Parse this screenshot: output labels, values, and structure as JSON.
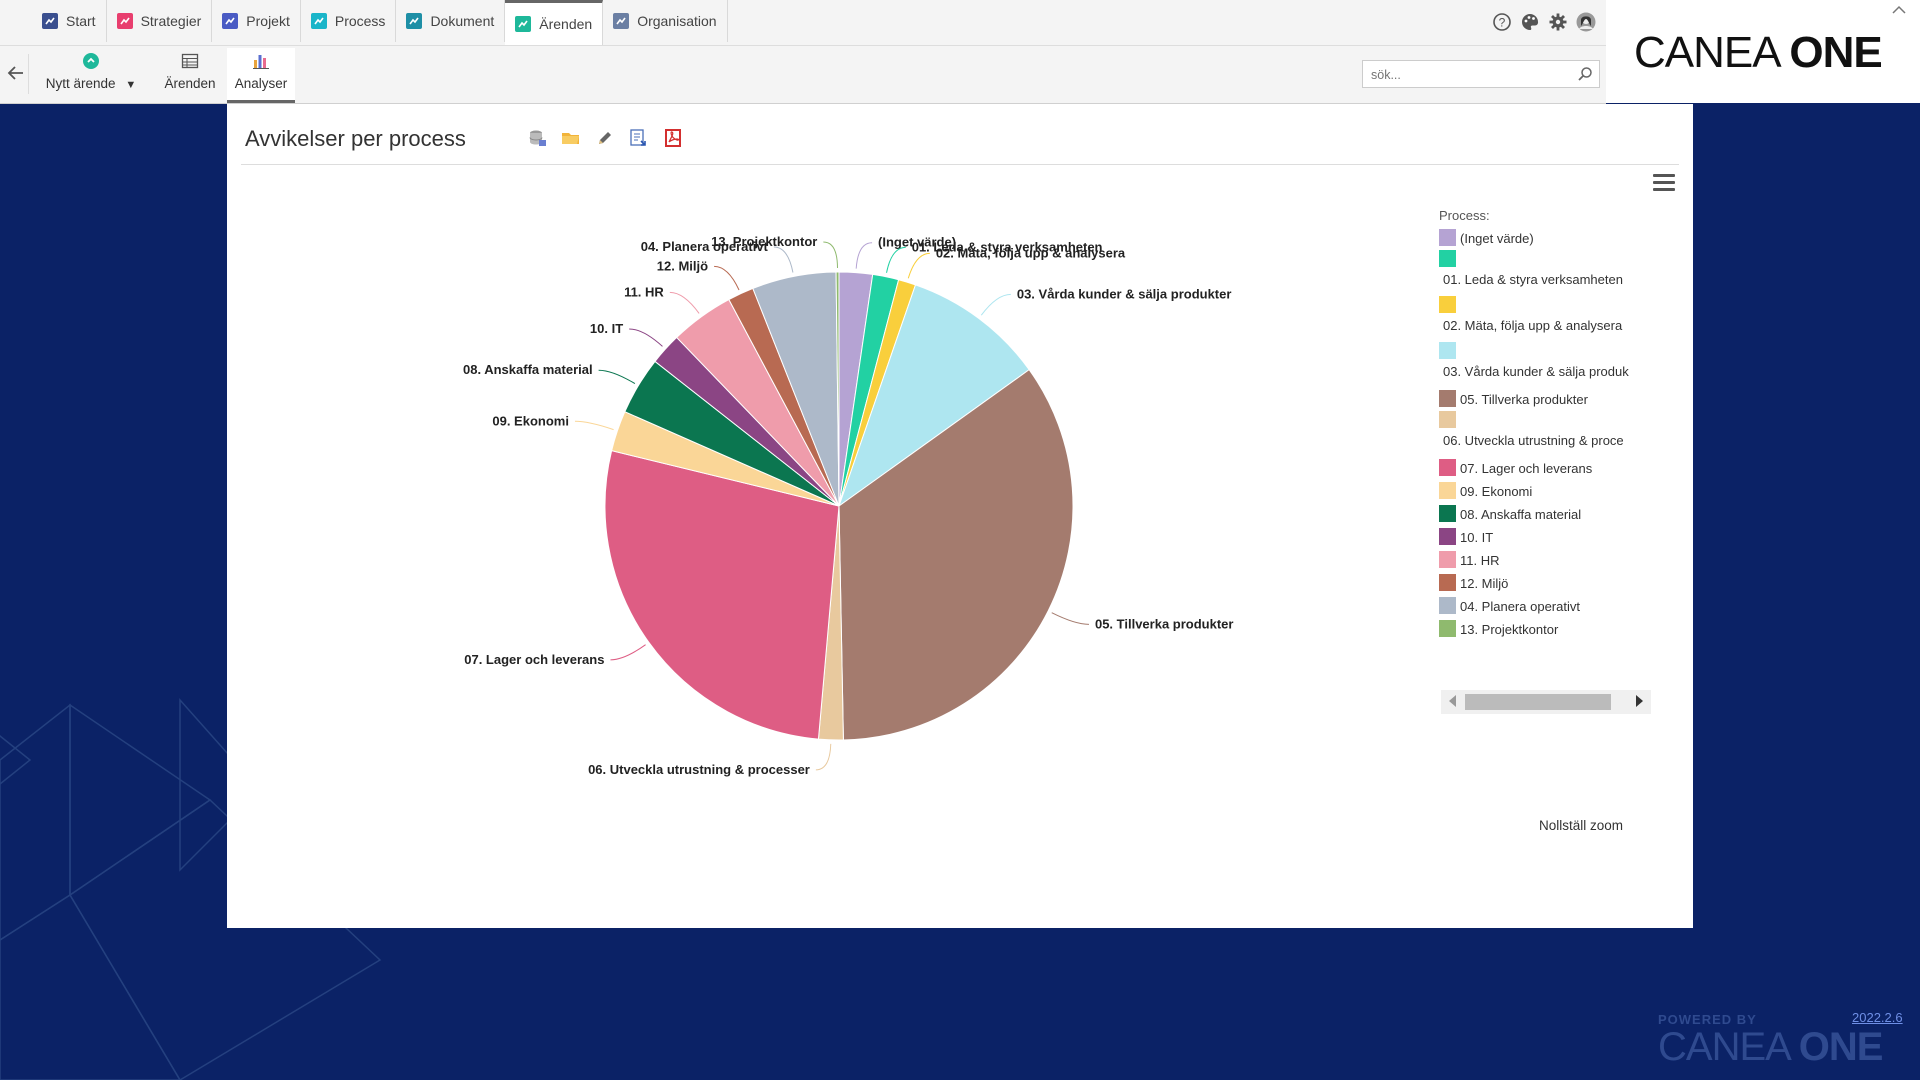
{
  "nav": {
    "tabs": [
      {
        "label": "Start",
        "icon": "home-icon",
        "color": "#3a4f8f"
      },
      {
        "label": "Strategier",
        "icon": "strategy-icon",
        "color": "#e83e6e"
      },
      {
        "label": "Projekt",
        "icon": "project-icon",
        "color": "#4a5bc4"
      },
      {
        "label": "Process",
        "icon": "process-icon",
        "color": "#1ab5c9"
      },
      {
        "label": "Dokument",
        "icon": "document-icon",
        "color": "#1e8fa6"
      },
      {
        "label": "Ärenden",
        "icon": "case-icon",
        "color": "#1eb89a"
      },
      {
        "label": "Organisation",
        "icon": "organisation-icon",
        "color": "#6b7fa3"
      }
    ],
    "active_tab": "Ärenden",
    "top_icons": [
      "help-icon",
      "palette-icon",
      "settings-icon",
      "avatar"
    ]
  },
  "brand": {
    "logo_light": "CANEA ",
    "logo_bold": "ONE"
  },
  "toolbar": {
    "new_case_label": "Nytt ärende",
    "cases_label": "Ärenden",
    "analyses_label": "Analyser"
  },
  "search": {
    "placeholder": "sök..."
  },
  "panel": {
    "title": "Avvikelser per process",
    "actions": [
      "database-icon",
      "folder-icon",
      "edit-icon",
      "export-icon",
      "pdf-icon"
    ],
    "reset_zoom_label": "Nollställ zoom"
  },
  "legend": {
    "title": "Process:"
  },
  "chart_data": {
    "type": "pie",
    "title": "Avvikelser per process",
    "legend_title": "Process:",
    "legend_position": "right",
    "slices": [
      {
        "label": "(Inget värde)",
        "legend": "(Inget värde)",
        "value": 2.3,
        "color": "#b5a3d3"
      },
      {
        "label": "01. Leda & styra verksamheten",
        "legend": "01. Leda & styra verksamheten",
        "value": 1.8,
        "color": "#22d1a3"
      },
      {
        "label": "02. Mäta, följa upp & analysera",
        "legend": "02. Mäta, följa upp & analysera",
        "value": 1.2,
        "color": "#f9cf3c"
      },
      {
        "label": "03. Vårda kunder & sälja produkter",
        "legend": "03. Vårda kunder & sälja produk",
        "value": 9.8,
        "color": "#aee6f0"
      },
      {
        "label": "05. Tillverka produkter",
        "legend": "05. Tillverka produkter",
        "value": 34.6,
        "color": "#a47b6e"
      },
      {
        "label": "06. Utveckla utrustning & processer",
        "legend": "06. Utveckla utrustning & proce",
        "value": 1.7,
        "color": "#e8c99e"
      },
      {
        "label": "07. Lager och leverans",
        "legend": "07. Lager och leverans",
        "value": 27.4,
        "color": "#de5d84"
      },
      {
        "label": "09. Ekonomi",
        "legend": "09. Ekonomi",
        "value": 2.8,
        "color": "#fad697"
      },
      {
        "label": "08. Anskaffa material",
        "legend": "08. Anskaffa material",
        "value": 4.0,
        "color": "#0b7650"
      },
      {
        "label": "10. IT",
        "legend": "10. IT",
        "value": 2.2,
        "color": "#8b4584"
      },
      {
        "label": "11. HR",
        "legend": "11. HR",
        "value": 4.4,
        "color": "#ef9cab"
      },
      {
        "label": "12. Miljö",
        "legend": "12. Miljö",
        "value": 1.8,
        "color": "#b86a52"
      },
      {
        "label": "04. Planera operativt",
        "legend": "04. Planera operativt",
        "value": 5.8,
        "color": "#adb9c9"
      },
      {
        "label": "13. Projektkontor",
        "legend": "13. Projektkontor",
        "value": 0.2,
        "color": "#8fba6e"
      }
    ]
  },
  "footer": {
    "version": "2022.2.6",
    "powered_by": "POWERED BY",
    "powered_logo_light": "CANEA ",
    "powered_logo_bold": "ONE"
  }
}
